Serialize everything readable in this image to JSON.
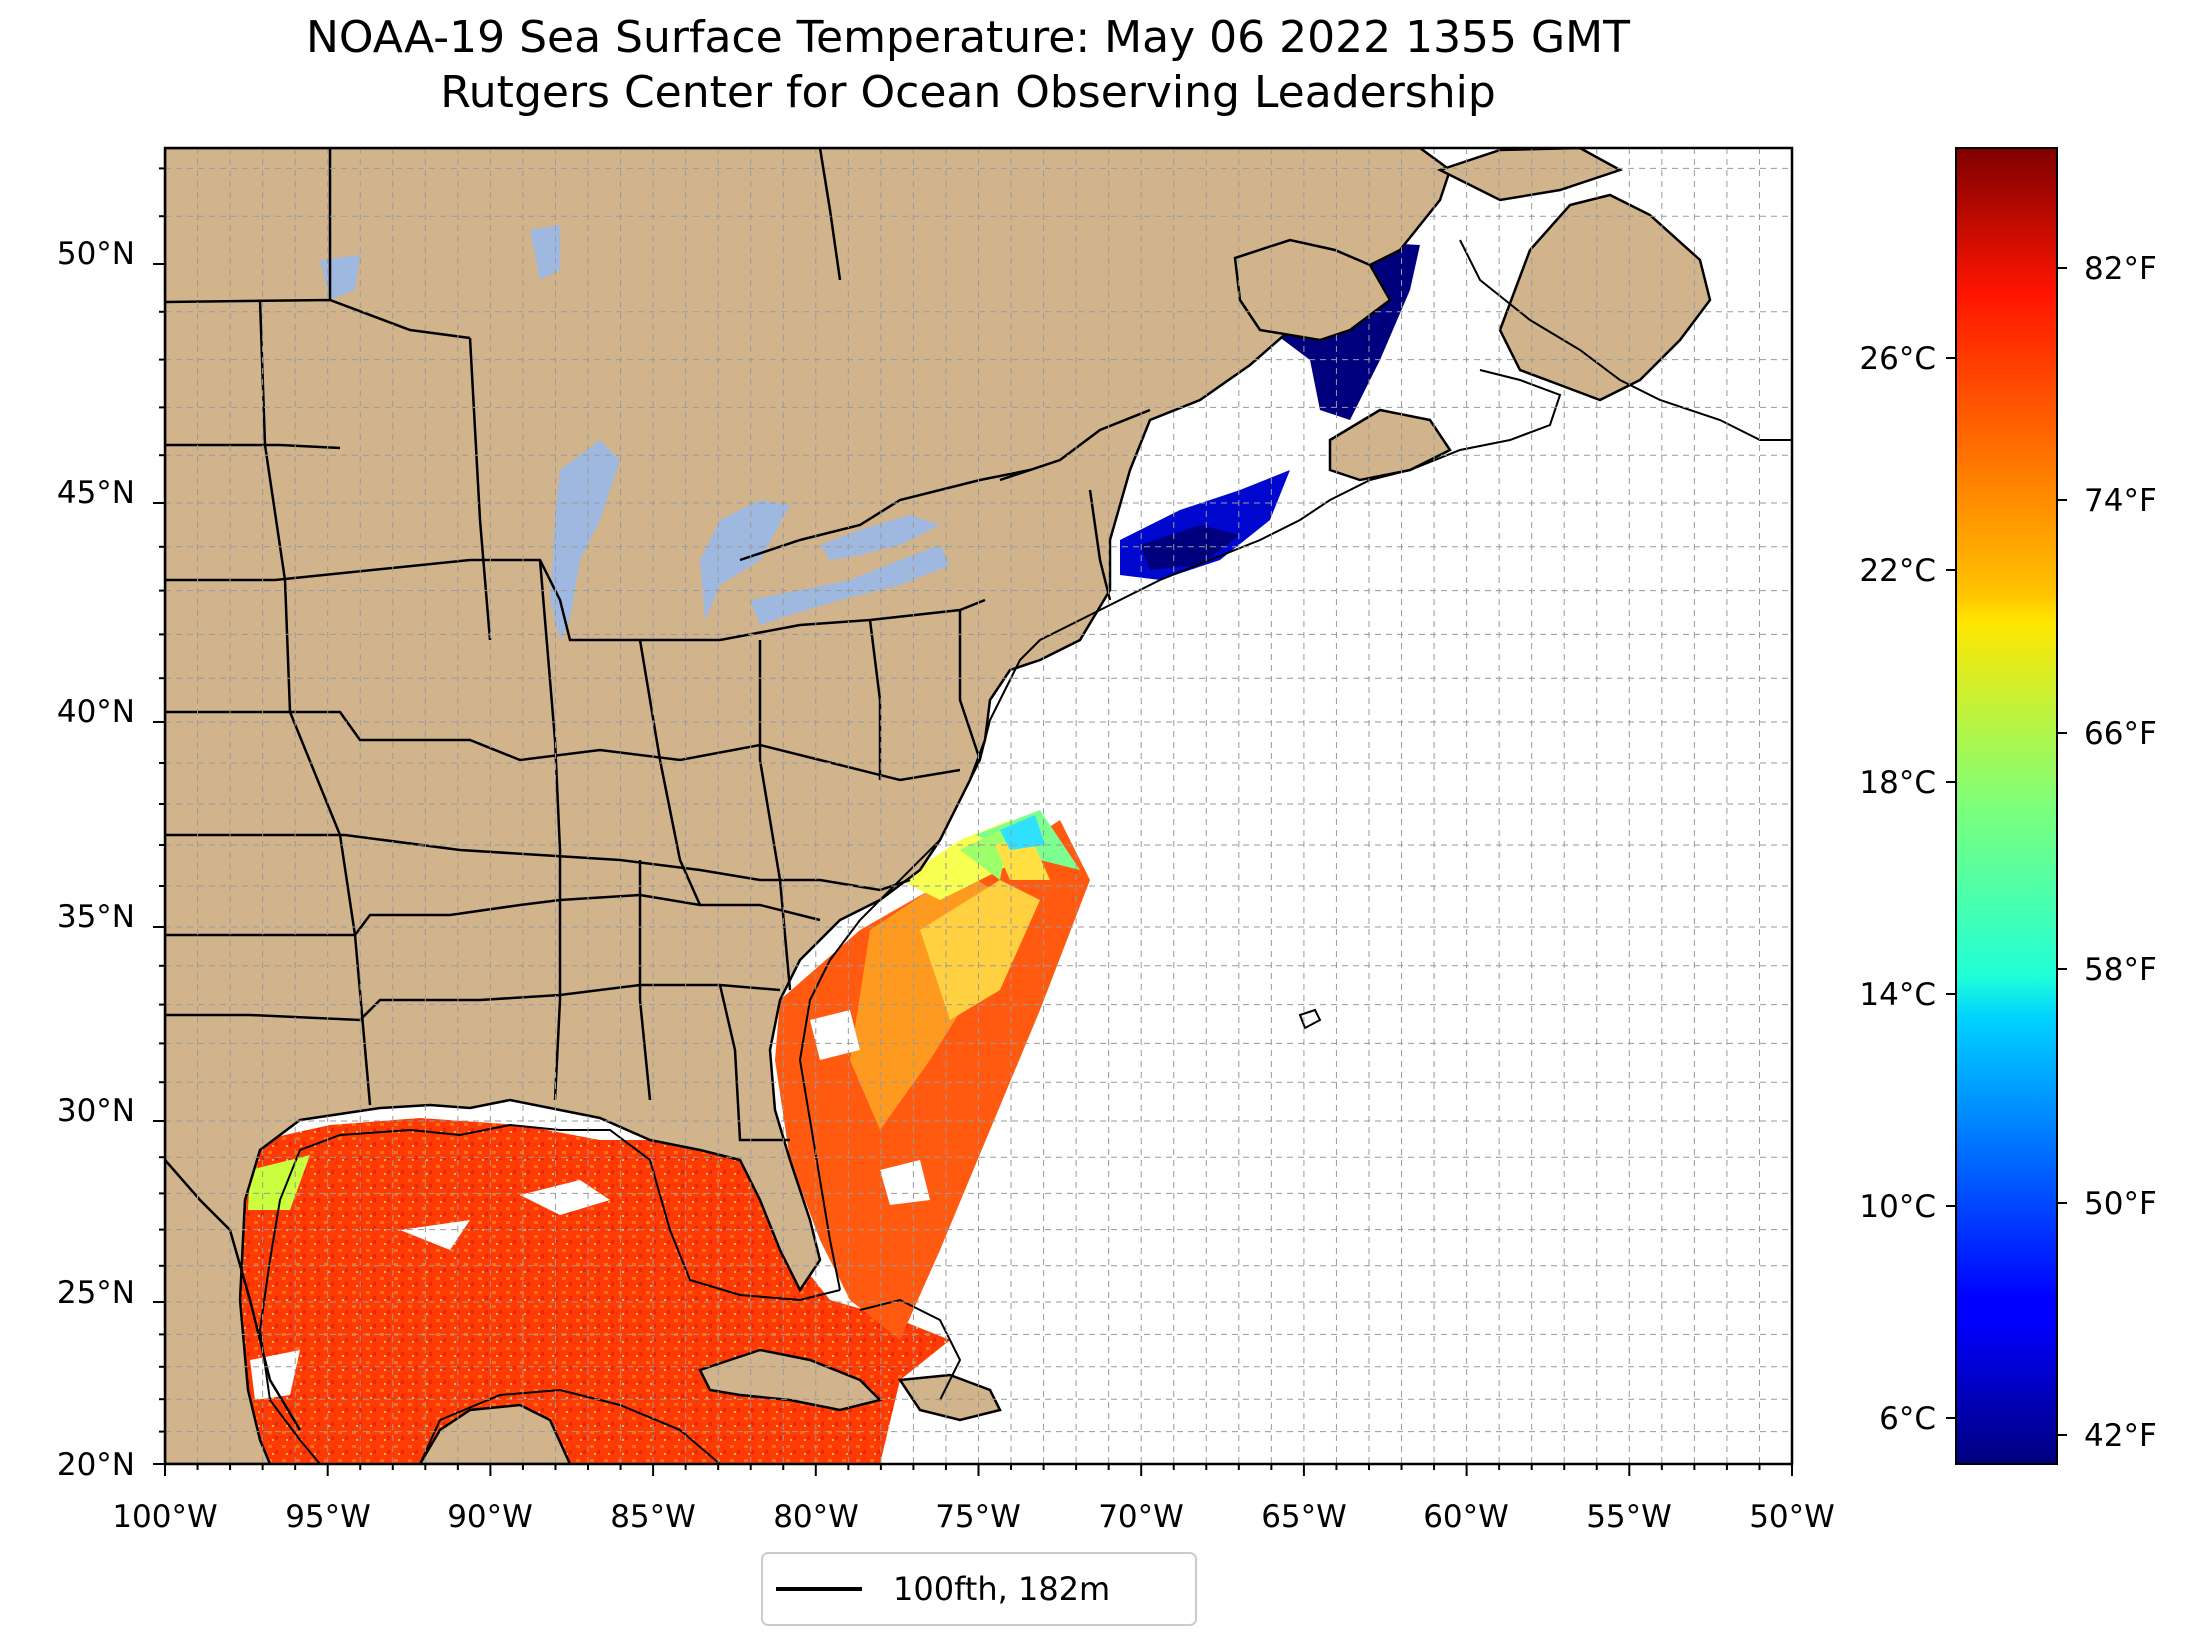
{
  "title": {
    "line1": "NOAA-19 Sea Surface Temperature: May 06 2022 1355 GMT",
    "line2": "Rutgers Center for Ocean Observing Leadership"
  },
  "map": {
    "lon_range": [
      -100,
      -50
    ],
    "lat_range": [
      20,
      52.2
    ],
    "lon_ticks": [
      "100°W",
      "95°W",
      "90°W",
      "85°W",
      "80°W",
      "75°W",
      "70°W",
      "65°W",
      "60°W",
      "55°W",
      "50°W"
    ],
    "lat_ticks": [
      "50°N",
      "45°N",
      "40°N",
      "35°N",
      "30°N",
      "25°N",
      "20°N"
    ],
    "grid": true,
    "land_color": "#d2b48c",
    "lake_color": "#9fb8e0"
  },
  "legend": {
    "label": "100fth, 182m",
    "placement": "bottom-center"
  },
  "colorbar": {
    "colormap": "jet",
    "celsius_ticks": [
      "26°C",
      "22°C",
      "18°C",
      "14°C",
      "10°C",
      "6°C"
    ],
    "fahrenheit_ticks": [
      "82°F",
      "74°F",
      "66°F",
      "58°F",
      "50°F",
      "42°F"
    ]
  }
}
